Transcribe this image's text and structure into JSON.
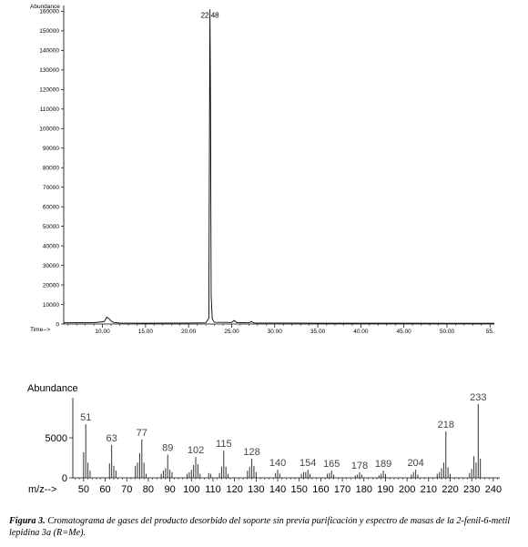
{
  "chart_data": [
    {
      "type": "line",
      "ylabel": "Abundance",
      "xlabel": "Time-->",
      "xlim": [
        5.5,
        55.5
      ],
      "ylim": [
        0,
        163000
      ],
      "y_ticks": [
        0,
        10000,
        20000,
        30000,
        40000,
        50000,
        60000,
        70000,
        80000,
        90000,
        100000,
        110000,
        120000,
        130000,
        140000,
        150000,
        160000
      ],
      "y_tick_labels": [
        "0",
        "10000",
        "20000",
        "30000",
        "40000",
        "50000",
        "60000",
        "70000",
        "80000",
        "90000",
        "100000",
        "110000",
        "120000",
        "130000",
        "140000",
        "150000",
        "160000"
      ],
      "x_ticks": [
        10,
        15,
        20,
        25,
        30,
        35,
        40,
        45,
        50,
        55
      ],
      "x_tick_labels": [
        "10.00",
        "15.00",
        "20.00",
        "25.00",
        "30.00",
        "35.00",
        "40.00",
        "45.00",
        "50.00",
        "55."
      ],
      "peak_label": "22.48",
      "series": [
        {
          "x": [
            5.5,
            9.0,
            10.2,
            10.5,
            10.8,
            11.0,
            11.3,
            12.0,
            15.0,
            20.0,
            22.0,
            22.35,
            22.42,
            22.48,
            22.55,
            22.62,
            22.75,
            23.0,
            25.0,
            25.3,
            25.6,
            27.0,
            27.3,
            27.6,
            30.0,
            35.0,
            40.0,
            45.0,
            50.0,
            55.5
          ],
          "y": [
            600,
            700,
            1200,
            3500,
            2600,
            1500,
            800,
            500,
            450,
            500,
            600,
            3000,
            90000,
            161000,
            110000,
            14000,
            2500,
            900,
            800,
            1800,
            700,
            600,
            1200,
            500,
            500,
            450,
            450,
            420,
            400,
            400
          ]
        }
      ]
    },
    {
      "type": "bar",
      "ylabel": "Abundance",
      "xlabel": "m/z-->",
      "xlim": [
        45,
        243
      ],
      "ylim": [
        0,
        10000
      ],
      "y_ticks": [
        0,
        5000
      ],
      "y_tick_labels": [
        "0",
        "5000"
      ],
      "x_ticks": [
        50,
        60,
        70,
        80,
        90,
        100,
        110,
        120,
        130,
        140,
        150,
        160,
        170,
        180,
        190,
        200,
        210,
        220,
        230,
        240
      ],
      "x_tick_labels": [
        "50",
        "60",
        "70",
        "80",
        "90",
        "100",
        "110",
        "120",
        "130",
        "140",
        "150",
        "160",
        "170",
        "180",
        "190",
        "200",
        "210",
        "220",
        "230",
        "240"
      ],
      "labeled_peaks": [
        {
          "mz": 51,
          "label": "51"
        },
        {
          "mz": 63,
          "label": "63"
        },
        {
          "mz": 77,
          "label": "77"
        },
        {
          "mz": 89,
          "label": "89"
        },
        {
          "mz": 102,
          "label": "102"
        },
        {
          "mz": 115,
          "label": "115"
        },
        {
          "mz": 128,
          "label": "128"
        },
        {
          "mz": 140,
          "label": "140"
        },
        {
          "mz": 154,
          "label": "154"
        },
        {
          "mz": 165,
          "label": "165"
        },
        {
          "mz": 178,
          "label": "178"
        },
        {
          "mz": 189,
          "label": "189"
        },
        {
          "mz": 204,
          "label": "204"
        },
        {
          "mz": 218,
          "label": "218"
        },
        {
          "mz": 233,
          "label": "233"
        }
      ],
      "x": [
        50,
        51,
        52,
        53,
        62,
        63,
        64,
        65,
        74,
        75,
        76,
        77,
        78,
        79,
        86,
        87,
        88,
        89,
        90,
        91,
        98,
        99,
        100,
        101,
        102,
        103,
        104,
        108,
        109,
        113,
        114,
        115,
        116,
        117,
        126,
        127,
        128,
        129,
        130,
        139,
        140,
        141,
        151,
        152,
        153,
        154,
        155,
        163,
        164,
        165,
        166,
        176,
        177,
        178,
        179,
        187,
        188,
        189,
        190,
        202,
        203,
        204,
        205,
        214,
        215,
        216,
        217,
        218,
        219,
        220,
        229,
        230,
        231,
        232,
        233,
        234
      ],
      "values": [
        3200,
        6700,
        1900,
        900,
        1800,
        4100,
        1500,
        900,
        1500,
        1900,
        3100,
        4800,
        1900,
        500,
        500,
        900,
        1200,
        2900,
        1000,
        700,
        500,
        700,
        1000,
        1600,
        2600,
        1700,
        500,
        600,
        500,
        600,
        1400,
        3400,
        1400,
        500,
        900,
        1400,
        2400,
        1500,
        700,
        600,
        1000,
        500,
        500,
        700,
        700,
        1000,
        500,
        500,
        600,
        900,
        400,
        300,
        400,
        700,
        400,
        300,
        500,
        900,
        500,
        400,
        700,
        1000,
        400,
        500,
        700,
        1200,
        1900,
        5800,
        1300,
        500,
        600,
        1100,
        2700,
        1900,
        9200,
        2400
      ]
    }
  ],
  "caption": {
    "label": "Figura 3.",
    "text": " Cromatograma de gases del producto desorbido del soporte sin previa purificación y espectro de masas de la 2-fenil-6-metil lepidina 3a (R=Me)."
  }
}
